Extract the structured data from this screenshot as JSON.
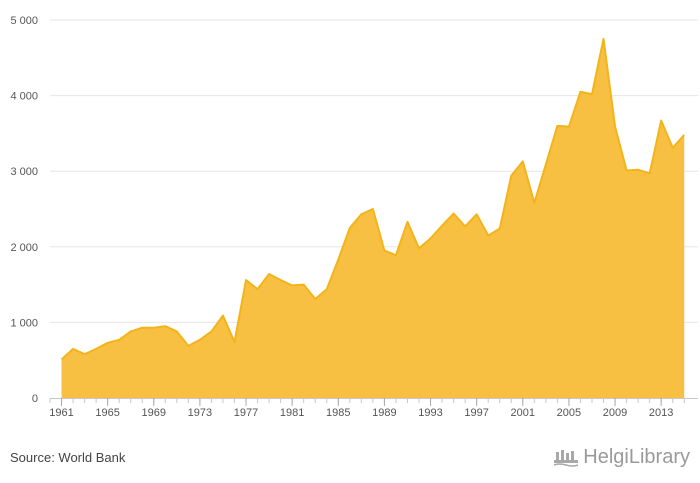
{
  "source_text": "Source: World Bank",
  "brand": {
    "name": "HelgiLibrary",
    "logo_icon": "helgi-library-logo-icon"
  },
  "colors": {
    "area_fill": "#F8C042",
    "area_line": "#F3B419",
    "grid": "#E6E6E6",
    "axis": "#C8C8C8"
  },
  "chart_data": {
    "type": "area",
    "title": "",
    "xlabel": "",
    "ylabel": "",
    "x": [
      1961,
      1962,
      1963,
      1964,
      1965,
      1966,
      1967,
      1968,
      1969,
      1970,
      1971,
      1972,
      1973,
      1974,
      1975,
      1976,
      1977,
      1978,
      1979,
      1980,
      1981,
      1982,
      1983,
      1984,
      1985,
      1986,
      1987,
      1988,
      1989,
      1990,
      1991,
      1992,
      1993,
      1994,
      1995,
      1996,
      1997,
      1998,
      1999,
      2000,
      2001,
      2002,
      2003,
      2004,
      2005,
      2006,
      2007,
      2008,
      2009,
      2010,
      2011,
      2012,
      2013,
      2014,
      2015
    ],
    "series": [
      {
        "values": [
          510,
          650,
          580,
          650,
          730,
          770,
          880,
          930,
          930,
          950,
          880,
          690,
          770,
          880,
          1090,
          740,
          1560,
          1440,
          1640,
          1560,
          1490,
          1500,
          1310,
          1440,
          1830,
          2250,
          2430,
          2500,
          1950,
          1890,
          2330,
          1980,
          2110,
          2280,
          2440,
          2270,
          2430,
          2150,
          2240,
          2940,
          3130,
          2580,
          3090,
          3600,
          3590,
          4050,
          4020,
          4750,
          3590,
          3010,
          3020,
          2970,
          3670,
          3310,
          3480
        ]
      }
    ],
    "xticks": [
      1961,
      1965,
      1969,
      1973,
      1977,
      1981,
      1985,
      1989,
      1993,
      1997,
      2001,
      2005,
      2009,
      2013
    ],
    "xtick_labels": [
      "1961",
      "1965",
      "1969",
      "1973",
      "1977",
      "1981",
      "1985",
      "1989",
      "1993",
      "1997",
      "2001",
      "2005",
      "2009",
      "2013"
    ],
    "yticks": [
      0,
      1000,
      2000,
      3000,
      4000,
      5000
    ],
    "ytick_labels": [
      "0",
      "1 000",
      "2 000",
      "3 000",
      "4 000",
      "5 000"
    ],
    "ylim": [
      0,
      5000
    ],
    "xlim": [
      1960,
      2015.5
    ],
    "grid": "horizontal",
    "legend": "none"
  }
}
